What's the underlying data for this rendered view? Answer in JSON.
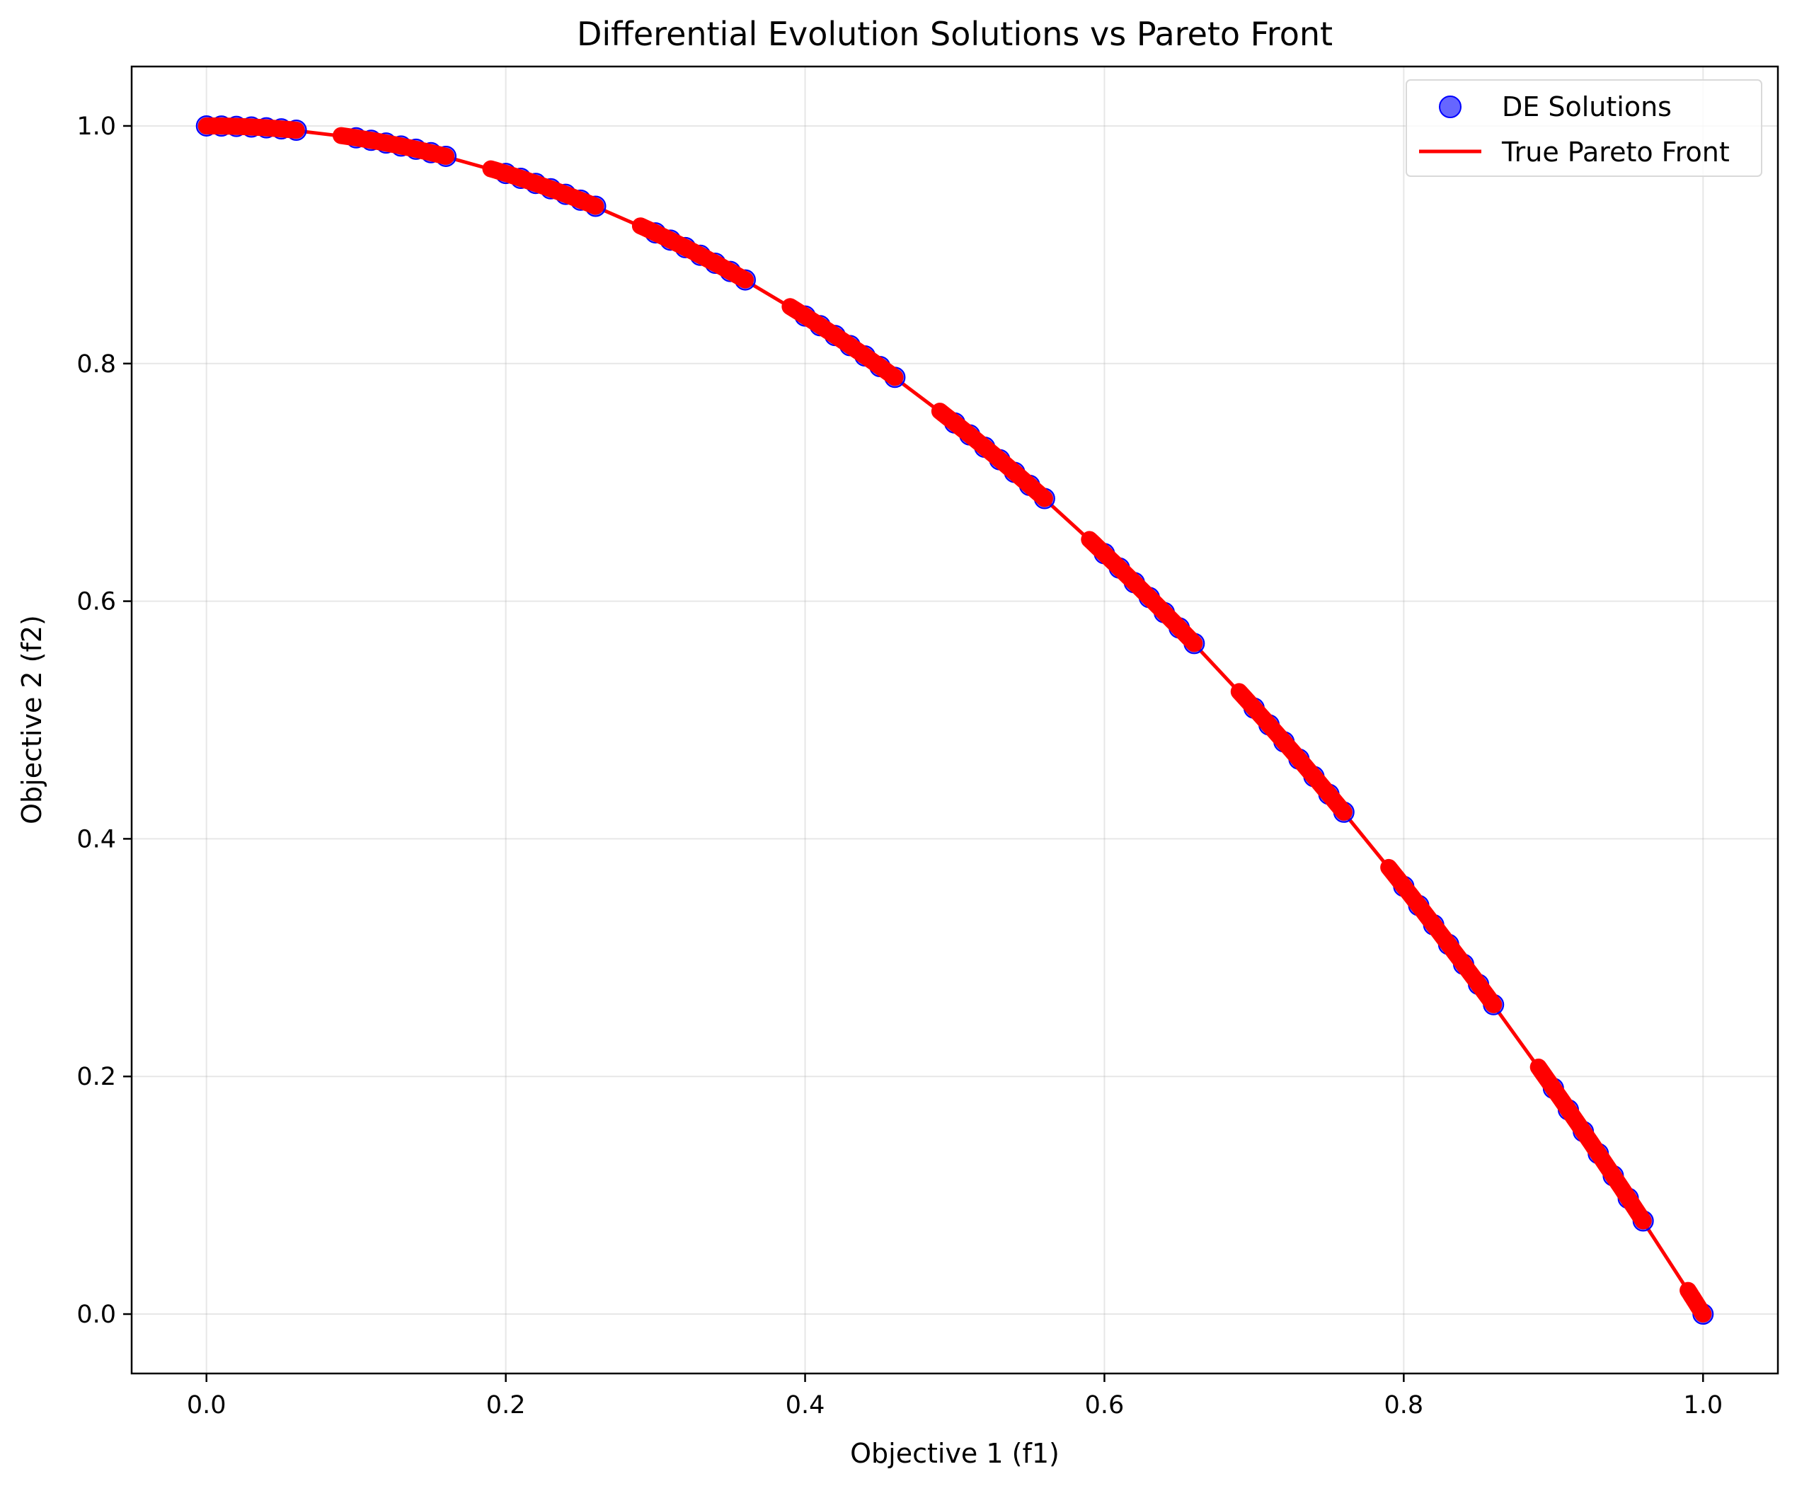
{
  "chart_data": {
    "type": "scatter",
    "title": "Differential Evolution Solutions vs Pareto Front",
    "xlabel": "Objective 1 (f1)",
    "ylabel": "Objective 2 (f2)",
    "xlim": [
      -0.05,
      1.05
    ],
    "ylim": [
      -0.05,
      1.05
    ],
    "xticks": [
      0.0,
      0.2,
      0.4,
      0.6,
      0.8,
      1.0
    ],
    "yticks": [
      0.0,
      0.2,
      0.4,
      0.6,
      0.8,
      1.0
    ],
    "xtick_labels": [
      "0.0",
      "0.2",
      "0.4",
      "0.6",
      "0.8",
      "1.0"
    ],
    "ytick_labels": [
      "0.0",
      "0.2",
      "0.4",
      "0.6",
      "0.8",
      "1.0"
    ],
    "grid": true,
    "legend_position": "top-right",
    "series": [
      {
        "name": "DE Solutions",
        "kind": "scatter",
        "color": "#0000ff",
        "opacity": 0.6,
        "x": [
          0.0,
          0.01,
          0.02,
          0.03,
          0.04,
          0.05,
          0.06,
          0.1,
          0.11,
          0.12,
          0.13,
          0.14,
          0.15,
          0.16,
          0.2,
          0.21,
          0.22,
          0.23,
          0.24,
          0.25,
          0.26,
          0.3,
          0.31,
          0.32,
          0.33,
          0.34,
          0.35,
          0.36,
          0.4,
          0.41,
          0.42,
          0.43,
          0.44,
          0.45,
          0.46,
          0.5,
          0.51,
          0.52,
          0.53,
          0.54,
          0.55,
          0.56,
          0.6,
          0.61,
          0.62,
          0.63,
          0.64,
          0.65,
          0.66,
          0.7,
          0.71,
          0.72,
          0.73,
          0.74,
          0.75,
          0.76,
          0.8,
          0.81,
          0.82,
          0.83,
          0.84,
          0.85,
          0.86,
          0.9,
          0.91,
          0.92,
          0.93,
          0.94,
          0.95,
          0.96,
          1.0
        ],
        "y": [
          1.0,
          0.9999,
          0.9996,
          0.9991,
          0.9984,
          0.9975,
          0.9964,
          0.99,
          0.9879,
          0.9856,
          0.9831,
          0.9804,
          0.9775,
          0.9744,
          0.96,
          0.9559,
          0.9516,
          0.9471,
          0.9424,
          0.9375,
          0.9324,
          0.91,
          0.9039,
          0.8976,
          0.8911,
          0.8844,
          0.8775,
          0.8704,
          0.84,
          0.8319,
          0.8236,
          0.8151,
          0.8064,
          0.7975,
          0.7884,
          0.75,
          0.7399,
          0.7296,
          0.7191,
          0.7084,
          0.6975,
          0.6864,
          0.64,
          0.6279,
          0.6156,
          0.6031,
          0.5904,
          0.5775,
          0.5644,
          0.51,
          0.4959,
          0.4816,
          0.4671,
          0.4524,
          0.4375,
          0.4224,
          0.36,
          0.3439,
          0.3276,
          0.3111,
          0.2944,
          0.2775,
          0.2604,
          0.19,
          0.1719,
          0.1536,
          0.1351,
          0.1164,
          0.0975,
          0.0784,
          0.0
        ]
      },
      {
        "name": "True Pareto Front",
        "kind": "line",
        "color": "#ff0000",
        "x": [
          0.0,
          0.05,
          0.1,
          0.15,
          0.2,
          0.25,
          0.3,
          0.35,
          0.4,
          0.45,
          0.5,
          0.55,
          0.6,
          0.65,
          0.7,
          0.75,
          0.8,
          0.85,
          0.9,
          0.95,
          1.0
        ],
        "y": [
          1.0,
          0.9975,
          0.99,
          0.9775,
          0.96,
          0.9375,
          0.91,
          0.8775,
          0.84,
          0.7975,
          0.75,
          0.6975,
          0.64,
          0.5775,
          0.51,
          0.4375,
          0.36,
          0.2775,
          0.19,
          0.0975,
          0.0
        ]
      },
      {
        "name": "",
        "kind": "segments",
        "color": "#ff0000",
        "x_ranges": [
          [
            0.0,
            0.06
          ],
          [
            0.09,
            0.16
          ],
          [
            0.19,
            0.26
          ],
          [
            0.29,
            0.36
          ],
          [
            0.39,
            0.46
          ],
          [
            0.49,
            0.56
          ],
          [
            0.59,
            0.66
          ],
          [
            0.69,
            0.76
          ],
          [
            0.79,
            0.86
          ],
          [
            0.89,
            0.96
          ],
          [
            0.99,
            1.0
          ]
        ]
      }
    ]
  }
}
